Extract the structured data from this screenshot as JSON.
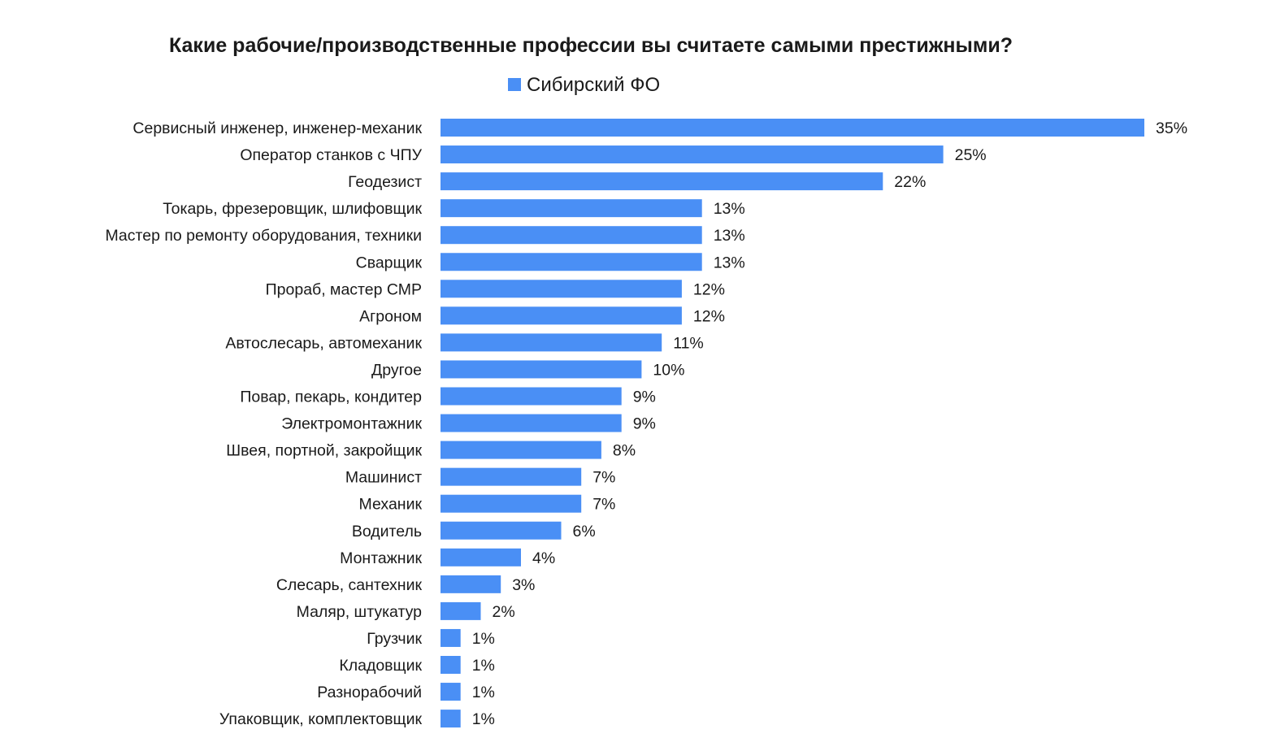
{
  "chart_data": {
    "type": "bar",
    "orientation": "horizontal",
    "title": "Какие рабочие/производственные профессии вы считаете самыми престижными?",
    "categories": [
      "Сервисный инженер, инженер-механик",
      "Оператор станков с ЧПУ",
      "Геодезист",
      "Токарь, фрезеровщик, шлифовщик",
      "Мастер по ремонту оборудования, техники",
      "Сварщик",
      "Прораб, мастер СМР",
      "Агроном",
      "Автослесарь, автомеханик",
      "Другое",
      "Повар, пекарь, кондитер",
      "Электромонтажник",
      "Швея, портной, закройщик",
      "Машинист",
      "Механик",
      "Водитель",
      "Монтажник",
      "Слесарь, сантехник",
      "Маляр, штукатур",
      "Грузчик",
      "Кладовщик",
      "Разнорабочий",
      "Упаковщик, комплектовщик"
    ],
    "series": [
      {
        "name": "Сибирский ФО",
        "color": "#4a8ff5",
        "values": [
          35,
          25,
          22,
          13,
          13,
          13,
          12,
          12,
          11,
          10,
          9,
          9,
          8,
          7,
          7,
          6,
          4,
          3,
          2,
          1,
          1,
          1,
          1
        ],
        "labels": [
          "35%",
          "25%",
          "22%",
          "13%",
          "13%",
          "13%",
          "12%",
          "12%",
          "11%",
          "10%",
          "9%",
          "9%",
          "8%",
          "7%",
          "7%",
          "6%",
          "4%",
          "3%",
          "2%",
          "1%",
          "1%",
          "1%",
          "1%"
        ]
      }
    ],
    "xlim": [
      0,
      36
    ],
    "value_suffix": "%",
    "legend_position": "top",
    "grid": false,
    "axes_visible": false
  }
}
